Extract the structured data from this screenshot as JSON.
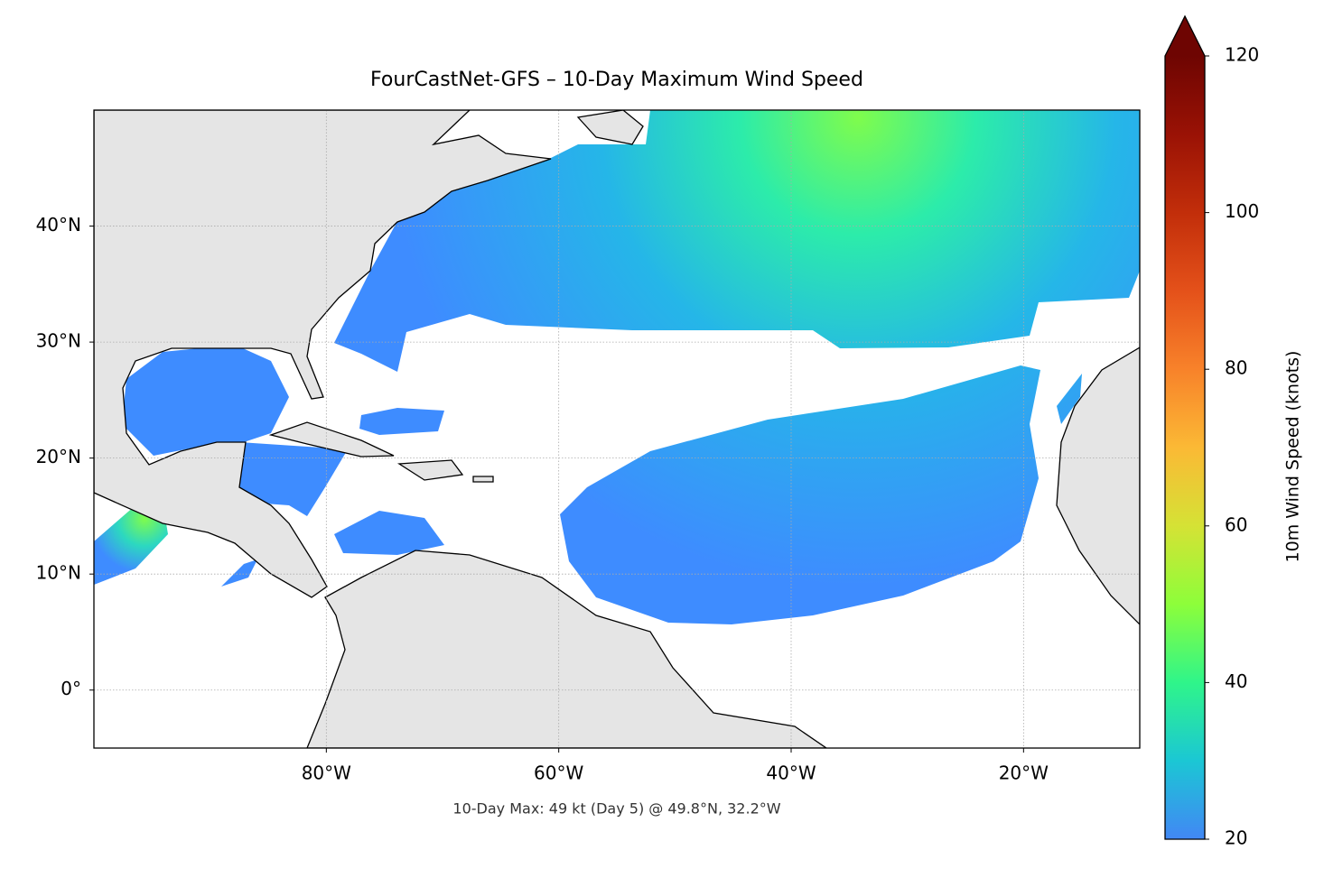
{
  "chart_data": {
    "type": "map",
    "title": "FourCastNet-GFS – 10-Day Maximum Wind Speed",
    "annotation": "10-Day Max: 49 kt (Day 5) @ 49.8°N, 32.2°W",
    "xlim": [
      -100,
      -10
    ],
    "ylim": [
      -5,
      50
    ],
    "xticks": [
      {
        "value": -80,
        "label": "80°W"
      },
      {
        "value": -60,
        "label": "60°W"
      },
      {
        "value": -40,
        "label": "40°W"
      },
      {
        "value": -20,
        "label": "20°W"
      }
    ],
    "yticks": [
      {
        "value": 0,
        "label": "0°"
      },
      {
        "value": 10,
        "label": "10°N"
      },
      {
        "value": 20,
        "label": "20°N"
      },
      {
        "value": 30,
        "label": "30°N"
      },
      {
        "value": 40,
        "label": "40°N"
      }
    ],
    "grid": true,
    "colorbar": {
      "label": "10m Wind Speed (knots)",
      "lim": [
        20,
        120
      ],
      "ticks": [
        20,
        40,
        60,
        80,
        100,
        120
      ],
      "colors": [
        "#4287f5",
        "#1bc7d4",
        "#2ff58a",
        "#8dfe3a",
        "#d5e235",
        "#fbb935",
        "#f8822a",
        "#e4511a",
        "#c22e0a",
        "#9a1205",
        "#6e0502"
      ]
    }
  }
}
